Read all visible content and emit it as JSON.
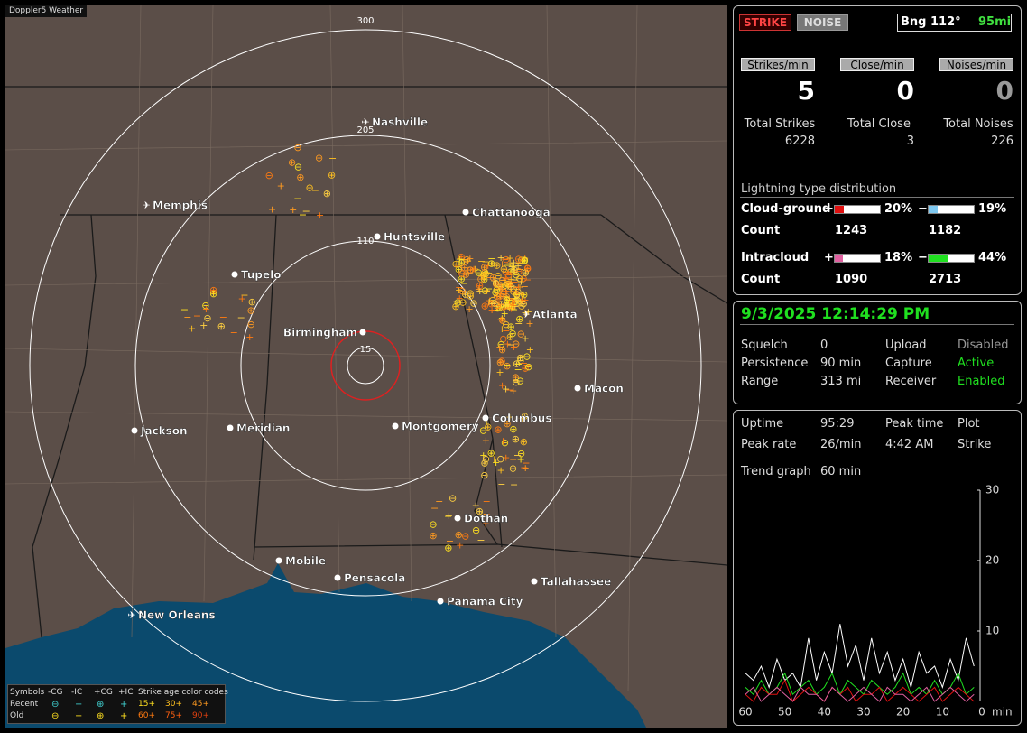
{
  "map": {
    "title": "Doppler5 Weather",
    "ring_labels": [
      "300",
      "205",
      "110",
      "15"
    ],
    "cities": [
      "Nashville",
      "Memphis",
      "Chattanooga",
      "Huntsville",
      "Tupelo",
      "Atlanta",
      "Birmingham",
      "Macon",
      "Columbus",
      "Montgomery",
      "Meridian",
      "Jackson",
      "Dothan",
      "Mobile",
      "Pensacola",
      "Tallahassee",
      "Panama City",
      "New Orleans"
    ],
    "legend": {
      "headers": [
        "Symbols",
        "-CG",
        "-IC",
        "+CG",
        "+IC",
        "Strike age color codes"
      ],
      "rows": [
        {
          "label": "Recent",
          "ages": [
            "15+",
            "30+",
            "45+"
          ]
        },
        {
          "label": "Old",
          "ages": [
            "60+",
            "75+",
            "90+"
          ]
        }
      ]
    }
  },
  "detection": {
    "modes": [
      "STRIKE",
      "NOISE"
    ],
    "bearing": "Bng 112°",
    "distance": "95mi"
  },
  "rates": [
    {
      "label": "Strikes/min",
      "value": 5
    },
    {
      "label": "Close/min",
      "value": 0
    },
    {
      "label": "Noises/min",
      "value": 0
    }
  ],
  "totals": [
    {
      "label": "Total Strikes",
      "value": 6228
    },
    {
      "label": "Total Close",
      "value": 3
    },
    {
      "label": "Total Noises",
      "value": 226
    }
  ],
  "distribution": {
    "title": "Lightning type distribution",
    "rows": [
      {
        "name": "Cloud-ground",
        "count_label": "Count",
        "values": [
          20,
          19
        ],
        "value_labels": [
          "20%",
          "19%"
        ],
        "colors": [
          "#e01010",
          "#7ec8f0"
        ],
        "counts": [
          1243,
          1182
        ]
      },
      {
        "name": "Intracloud",
        "count_label": "Count",
        "values": [
          18,
          44
        ],
        "value_labels": [
          "18%",
          "44%"
        ],
        "colors": [
          "#e060a0",
          "#20e020"
        ],
        "counts": [
          1090,
          2713
        ]
      }
    ]
  },
  "clock": "9/3/2025 12:14:29 PM",
  "settings": [
    {
      "label": "Squelch",
      "value": "0"
    },
    {
      "label": "Persistence",
      "value": "90 min"
    },
    {
      "label": "Range",
      "value": "313 mi"
    },
    {
      "label": "Upload",
      "value": "Disabled"
    },
    {
      "label": "Capture",
      "value": "Active"
    },
    {
      "label": "Receiver",
      "value": "Enabled"
    }
  ],
  "stats": [
    {
      "label": "Uptime",
      "value": "95:29"
    },
    {
      "label": "Peak rate",
      "value": "26/min"
    },
    {
      "label": "Peak time",
      "value": "4:42 AM"
    },
    {
      "label": "Plot",
      "value": "Strike"
    },
    {
      "label": "Trend graph",
      "value": "60 min"
    }
  ],
  "chart_data": {
    "type": "line",
    "x": [
      60,
      58,
      56,
      54,
      52,
      50,
      48,
      46,
      44,
      42,
      40,
      38,
      36,
      34,
      32,
      30,
      28,
      26,
      24,
      22,
      20,
      18,
      16,
      14,
      12,
      10,
      8,
      6,
      4,
      2
    ],
    "series": [
      {
        "color": "#ffffff",
        "values": [
          4,
          3,
          5,
          2,
          6,
          3,
          4,
          2,
          9,
          3,
          7,
          4,
          11,
          5,
          8,
          3,
          9,
          4,
          7,
          3,
          6,
          2,
          7,
          4,
          5,
          2,
          6,
          3,
          9,
          5
        ]
      },
      {
        "color": "#20e020",
        "values": [
          2,
          1,
          3,
          1,
          2,
          4,
          1,
          2,
          3,
          1,
          2,
          4,
          1,
          3,
          2,
          1,
          3,
          2,
          1,
          2,
          4,
          1,
          2,
          1,
          3,
          1,
          2,
          4,
          1,
          2
        ]
      },
      {
        "color": "#e01010",
        "values": [
          1,
          0,
          2,
          1,
          1,
          3,
          0,
          1,
          2,
          1,
          0,
          2,
          1,
          2,
          0,
          1,
          1,
          2,
          0,
          1,
          2,
          1,
          0,
          1,
          2,
          0,
          1,
          2,
          1,
          0
        ]
      },
      {
        "color": "#e060a0",
        "values": [
          1,
          2,
          0,
          1,
          2,
          1,
          0,
          2,
          1,
          1,
          0,
          2,
          1,
          0,
          1,
          2,
          1,
          0,
          2,
          1,
          1,
          0,
          1,
          2,
          0,
          1,
          2,
          1,
          0,
          1
        ]
      }
    ],
    "xlim": [
      60,
      0
    ],
    "ylim": [
      0,
      30
    ],
    "xticks": [
      60,
      50,
      40,
      30,
      20,
      10,
      0
    ],
    "yticks": [
      10,
      20,
      30
    ],
    "x_unit": "min"
  }
}
